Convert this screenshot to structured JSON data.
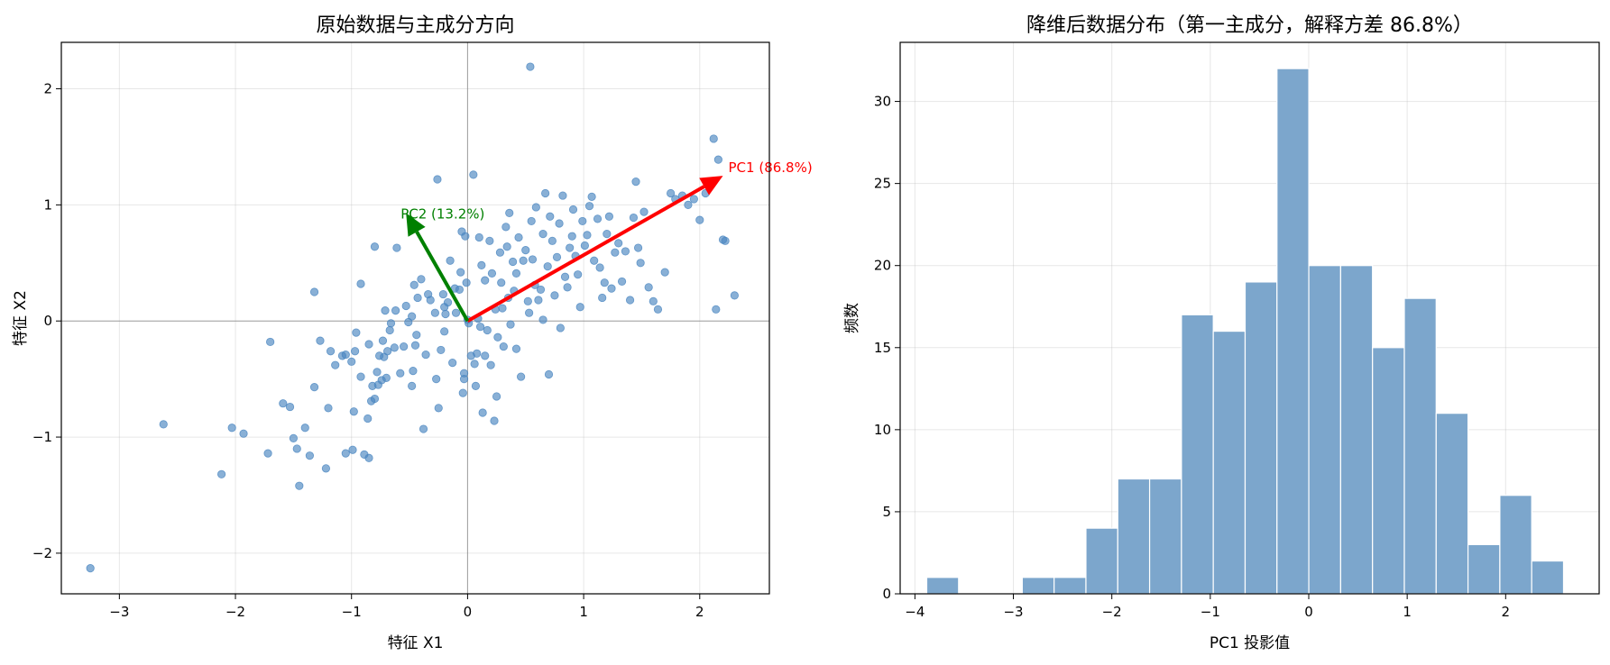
{
  "chart_data": [
    {
      "type": "scatter",
      "title": "原始数据与主成分方向",
      "xlabel": "特征 X1",
      "ylabel": "特征 X2",
      "xlim": [
        -3.5,
        2.6
      ],
      "ylim": [
        -2.35,
        2.4
      ],
      "xticks": [
        -3,
        -2,
        -1,
        0,
        1,
        2
      ],
      "yticks": [
        -2,
        -1,
        0,
        1,
        2
      ],
      "grid": true,
      "point_color": "#4a86c0",
      "points": [
        [
          -3.25,
          -2.13
        ],
        [
          -2.62,
          -0.89
        ],
        [
          -2.12,
          -1.32
        ],
        [
          -2.03,
          -0.92
        ],
        [
          -1.93,
          -0.97
        ],
        [
          -1.72,
          -1.14
        ],
        [
          -1.7,
          -0.18
        ],
        [
          -1.59,
          -0.71
        ],
        [
          -1.53,
          -0.74
        ],
        [
          -1.5,
          -1.01
        ],
        [
          -1.47,
          -1.1
        ],
        [
          -1.45,
          -1.42
        ],
        [
          -1.4,
          -0.92
        ],
        [
          -1.36,
          -1.16
        ],
        [
          -1.32,
          -0.57
        ],
        [
          -1.32,
          0.25
        ],
        [
          -1.27,
          -0.17
        ],
        [
          -1.22,
          -1.27
        ],
        [
          -1.2,
          -0.75
        ],
        [
          -1.18,
          -0.26
        ],
        [
          -1.14,
          -0.38
        ],
        [
          -1.08,
          -0.3
        ],
        [
          -1.05,
          -1.14
        ],
        [
          -1.05,
          -0.29
        ],
        [
          -1.0,
          -0.35
        ],
        [
          -0.99,
          -1.11
        ],
        [
          -0.98,
          -0.78
        ],
        [
          -0.97,
          -0.26
        ],
        [
          -0.96,
          -0.1
        ],
        [
          -0.92,
          0.32
        ],
        [
          -0.92,
          -0.48
        ],
        [
          -0.89,
          -1.15
        ],
        [
          -0.86,
          -0.84
        ],
        [
          -0.85,
          -0.2
        ],
        [
          -0.85,
          -1.18
        ],
        [
          -0.83,
          -0.69
        ],
        [
          -0.82,
          -0.56
        ],
        [
          -0.8,
          -0.67
        ],
        [
          -0.8,
          0.64
        ],
        [
          -0.78,
          -0.44
        ],
        [
          -0.77,
          -0.55
        ],
        [
          -0.76,
          -0.3
        ],
        [
          -0.74,
          -0.51
        ],
        [
          -0.73,
          -0.17
        ],
        [
          -0.72,
          -0.31
        ],
        [
          -0.71,
          0.09
        ],
        [
          -0.7,
          -0.49
        ],
        [
          -0.69,
          -0.26
        ],
        [
          -0.67,
          -0.08
        ],
        [
          -0.66,
          -0.02
        ],
        [
          -0.63,
          -0.23
        ],
        [
          -0.62,
          0.09
        ],
        [
          -0.61,
          0.63
        ],
        [
          -0.58,
          -0.45
        ],
        [
          -0.55,
          -0.22
        ],
        [
          -0.53,
          0.13
        ],
        [
          -0.51,
          -0.01
        ],
        [
          -0.48,
          0.04
        ],
        [
          -0.48,
          -0.56
        ],
        [
          -0.47,
          -0.43
        ],
        [
          -0.46,
          0.31
        ],
        [
          -0.45,
          -0.21
        ],
        [
          -0.44,
          -0.12
        ],
        [
          -0.43,
          0.2
        ],
        [
          -0.4,
          0.36
        ],
        [
          -0.38,
          -0.93
        ],
        [
          -0.36,
          -0.29
        ],
        [
          -0.34,
          0.23
        ],
        [
          -0.32,
          0.18
        ],
        [
          -0.28,
          0.07
        ],
        [
          -0.27,
          -0.5
        ],
        [
          -0.26,
          1.22
        ],
        [
          -0.25,
          -0.75
        ],
        [
          -0.23,
          -0.25
        ],
        [
          -0.21,
          0.23
        ],
        [
          -0.2,
          0.12
        ],
        [
          -0.19,
          0.06
        ],
        [
          -0.17,
          0.16
        ],
        [
          -0.15,
          0.52
        ],
        [
          -0.13,
          -0.36
        ],
        [
          -0.11,
          0.28
        ],
        [
          -0.1,
          0.07
        ],
        [
          -0.07,
          0.27
        ],
        [
          -0.06,
          0.42
        ],
        [
          -0.05,
          0.77
        ],
        [
          -0.04,
          -0.62
        ],
        [
          -0.03,
          -0.5
        ],
        [
          -0.03,
          -0.45
        ],
        [
          -0.02,
          0.73
        ],
        [
          -0.01,
          0.33
        ],
        [
          0.0,
          0.01
        ],
        [
          0.01,
          -0.02
        ],
        [
          0.03,
          -0.3
        ],
        [
          0.05,
          1.26
        ],
        [
          0.06,
          -0.37
        ],
        [
          0.07,
          -0.56
        ],
        [
          0.08,
          -0.28
        ],
        [
          0.09,
          0.02
        ],
        [
          0.1,
          0.72
        ],
        [
          0.11,
          -0.05
        ],
        [
          0.12,
          0.48
        ],
        [
          0.13,
          -0.79
        ],
        [
          0.15,
          0.35
        ],
        [
          0.17,
          -0.08
        ],
        [
          0.19,
          0.69
        ],
        [
          0.21,
          0.41
        ],
        [
          0.23,
          -0.86
        ],
        [
          0.24,
          0.1
        ],
        [
          0.25,
          -0.65
        ],
        [
          0.26,
          -0.14
        ],
        [
          0.28,
          0.59
        ],
        [
          0.29,
          0.33
        ],
        [
          0.3,
          0.11
        ],
        [
          0.31,
          -0.22
        ],
        [
          0.33,
          0.81
        ],
        [
          0.34,
          0.64
        ],
        [
          0.35,
          0.2
        ],
        [
          0.36,
          0.93
        ],
        [
          0.37,
          -0.03
        ],
        [
          0.39,
          0.51
        ],
        [
          0.4,
          0.26
        ],
        [
          0.42,
          0.41
        ],
        [
          0.44,
          0.72
        ],
        [
          0.46,
          -0.48
        ],
        [
          0.48,
          0.52
        ],
        [
          0.5,
          0.61
        ],
        [
          0.52,
          0.17
        ],
        [
          0.53,
          0.07
        ],
        [
          0.55,
          0.86
        ],
        [
          0.56,
          0.53
        ],
        [
          0.58,
          0.31
        ],
        [
          0.59,
          0.98
        ],
        [
          0.61,
          0.18
        ],
        [
          0.63,
          0.27
        ],
        [
          0.65,
          0.75
        ],
        [
          0.67,
          1.1
        ],
        [
          0.69,
          0.47
        ],
        [
          0.71,
          0.9
        ],
        [
          0.73,
          0.69
        ],
        [
          0.75,
          0.22
        ],
        [
          0.77,
          0.55
        ],
        [
          0.79,
          0.84
        ],
        [
          0.8,
          -0.06
        ],
        [
          0.82,
          1.08
        ],
        [
          0.84,
          0.38
        ],
        [
          0.86,
          0.29
        ],
        [
          0.88,
          0.63
        ],
        [
          0.9,
          0.73
        ],
        [
          0.91,
          0.96
        ],
        [
          0.93,
          0.56
        ],
        [
          0.95,
          0.4
        ],
        [
          0.97,
          0.12
        ],
        [
          0.99,
          0.86
        ],
        [
          1.01,
          0.65
        ],
        [
          1.03,
          0.74
        ],
        [
          1.05,
          0.99
        ],
        [
          1.07,
          1.07
        ],
        [
          1.09,
          0.52
        ],
        [
          1.12,
          0.88
        ],
        [
          1.14,
          0.46
        ],
        [
          1.16,
          0.2
        ],
        [
          1.18,
          0.33
        ],
        [
          1.2,
          0.75
        ],
        [
          1.22,
          0.9
        ],
        [
          1.24,
          0.28
        ],
        [
          1.27,
          0.59
        ],
        [
          1.3,
          0.67
        ],
        [
          1.33,
          0.34
        ],
        [
          1.36,
          0.6
        ],
        [
          1.4,
          0.18
        ],
        [
          1.43,
          0.89
        ],
        [
          1.45,
          1.2
        ],
        [
          1.47,
          0.63
        ],
        [
          1.49,
          0.5
        ],
        [
          1.52,
          0.94
        ],
        [
          1.56,
          0.29
        ],
        [
          1.6,
          0.17
        ],
        [
          1.64,
          0.1
        ],
        [
          1.7,
          0.42
        ],
        [
          1.75,
          1.1
        ],
        [
          1.79,
          1.05
        ],
        [
          1.85,
          1.08
        ],
        [
          1.9,
          1.0
        ],
        [
          1.95,
          1.05
        ],
        [
          2.0,
          0.87
        ],
        [
          2.05,
          1.1
        ],
        [
          2.12,
          1.57
        ],
        [
          2.14,
          0.1
        ],
        [
          2.16,
          1.39
        ],
        [
          2.2,
          0.7
        ],
        [
          2.22,
          0.69
        ],
        [
          2.3,
          0.22
        ],
        [
          0.54,
          2.19
        ],
        [
          0.65,
          0.01
        ],
        [
          0.7,
          -0.46
        ],
        [
          0.15,
          -0.3
        ],
        [
          -0.2,
          -0.09
        ],
        [
          0.2,
          -0.38
        ],
        [
          0.42,
          -0.24
        ]
      ],
      "arrows": [
        {
          "label": "PC1 (86.8%)",
          "color": "#ff0000",
          "x0": 0,
          "y0": 0,
          "x1": 2.2,
          "y1": 1.25
        },
        {
          "label": "PC2 (13.2%)",
          "color": "#008000",
          "x0": 0,
          "y0": 0,
          "x1": -0.53,
          "y1": 0.93
        }
      ]
    },
    {
      "type": "bar",
      "title": "降维后数据分布（第一主成分，解释方差 86.8%）",
      "xlabel": "PC1 投影值",
      "ylabel": "频数",
      "xlim": [
        -4.15,
        2.95
      ],
      "ylim": [
        0,
        33.6
      ],
      "xticks": [
        -4,
        -3,
        -2,
        -1,
        0,
        1,
        2
      ],
      "yticks": [
        0,
        5,
        10,
        15,
        20,
        25,
        30
      ],
      "grid": true,
      "bar_color": "#7ca6cc",
      "bin_start": -3.88,
      "bin_width": 0.3234,
      "values": [
        1,
        0,
        0,
        1,
        1,
        4,
        7,
        7,
        17,
        16,
        19,
        32,
        20,
        20,
        15,
        18,
        11,
        3,
        6,
        2
      ]
    }
  ]
}
